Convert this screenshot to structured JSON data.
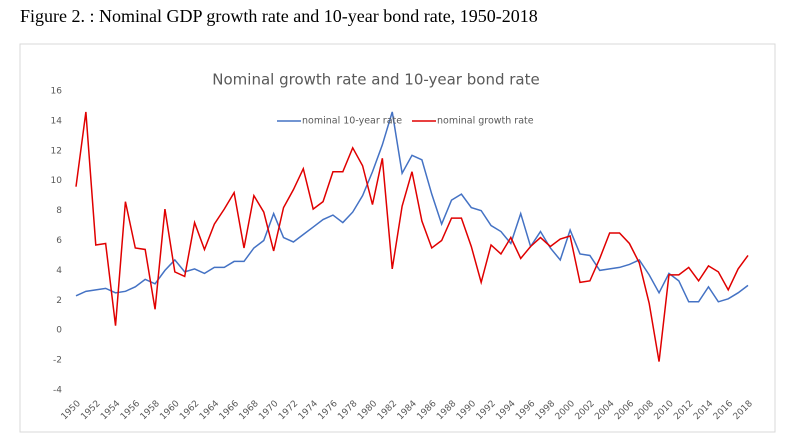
{
  "caption": "Figure 2. : Nominal GDP growth rate and 10-year bond rate, 1950-2018",
  "chart_data": {
    "type": "line",
    "title": "Nominal growth rate and 10-year bond rate",
    "x": [
      1950,
      1951,
      1952,
      1953,
      1954,
      1955,
      1956,
      1957,
      1958,
      1959,
      1960,
      1961,
      1962,
      1963,
      1964,
      1965,
      1966,
      1967,
      1968,
      1969,
      1970,
      1971,
      1972,
      1973,
      1974,
      1975,
      1976,
      1977,
      1978,
      1979,
      1980,
      1981,
      1982,
      1983,
      1984,
      1985,
      1986,
      1987,
      1988,
      1989,
      1990,
      1991,
      1992,
      1993,
      1994,
      1995,
      1996,
      1997,
      1998,
      1999,
      2000,
      2001,
      2002,
      2003,
      2004,
      2005,
      2006,
      2007,
      2008,
      2009,
      2010,
      2011,
      2012,
      2013,
      2014,
      2015,
      2016,
      2017,
      2018
    ],
    "series": [
      {
        "name": "nominal 10-year rate",
        "color": "#4472c4",
        "values": [
          2.3,
          2.6,
          2.7,
          2.8,
          2.5,
          2.6,
          2.9,
          3.4,
          3.1,
          4.0,
          4.7,
          3.9,
          4.1,
          3.8,
          4.2,
          4.2,
          4.6,
          4.6,
          5.5,
          6.0,
          7.8,
          6.2,
          5.9,
          6.4,
          6.9,
          7.4,
          7.7,
          7.2,
          7.9,
          9.0,
          10.6,
          12.4,
          14.6,
          10.5,
          11.7,
          11.4,
          9.1,
          7.1,
          8.7,
          9.1,
          8.2,
          8.0,
          7.0,
          6.6,
          5.8,
          7.8,
          5.6,
          6.6,
          5.5,
          4.7,
          6.7,
          5.1,
          5.0,
          4.0,
          4.1,
          4.2,
          4.4,
          4.7,
          3.7,
          2.5,
          3.8,
          3.3,
          1.9,
          1.9,
          2.9,
          1.9,
          2.1,
          2.5,
          3.0
        ]
      },
      {
        "name": "nominal growth rate",
        "color": "#e00000",
        "values": [
          9.6,
          14.6,
          5.7,
          5.8,
          0.3,
          8.6,
          5.5,
          5.4,
          1.4,
          8.1,
          3.9,
          3.6,
          7.2,
          5.4,
          7.1,
          8.1,
          9.2,
          5.5,
          9.0,
          7.9,
          5.3,
          8.2,
          9.4,
          10.8,
          8.1,
          8.6,
          10.6,
          10.6,
          12.2,
          11.0,
          8.4,
          11.5,
          4.1,
          8.3,
          10.6,
          7.3,
          5.5,
          6.0,
          7.5,
          7.5,
          5.6,
          3.2,
          5.7,
          5.1,
          6.2,
          4.8,
          5.6,
          6.2,
          5.6,
          6.1,
          6.3,
          3.2,
          3.3,
          4.8,
          6.5,
          6.5,
          5.8,
          4.5,
          1.8,
          -2.1,
          3.7,
          3.7,
          4.2,
          3.3,
          4.3,
          3.9,
          2.7,
          4.1,
          5.0
        ]
      }
    ],
    "xlim": [
      1950,
      2018
    ],
    "xticks": [
      1950,
      1952,
      1954,
      1956,
      1958,
      1960,
      1962,
      1964,
      1966,
      1968,
      1970,
      1972,
      1974,
      1976,
      1978,
      1980,
      1982,
      1984,
      1986,
      1988,
      1990,
      1992,
      1994,
      1996,
      1998,
      2000,
      2002,
      2004,
      2006,
      2008,
      2010,
      2012,
      2014,
      2016,
      2018
    ],
    "ylim": [
      -4,
      16
    ],
    "yticks": [
      -4,
      -2,
      0,
      2,
      4,
      6,
      8,
      10,
      12,
      14,
      16
    ],
    "legend": "top"
  }
}
